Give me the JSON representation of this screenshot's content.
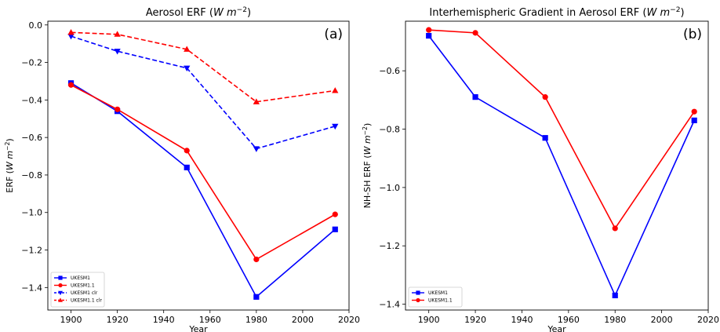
{
  "chart_data": [
    {
      "type": "line",
      "title": "Aerosol ERF (W m^-2)",
      "panel_label": "(a)",
      "xlabel": "Year",
      "ylabel": "ERF (W m^-2)",
      "xlim": [
        1890,
        2020
      ],
      "ylim": [
        -1.52,
        0.02
      ],
      "xticks": [
        1900,
        1920,
        1940,
        1960,
        1980,
        2000,
        2020
      ],
      "yticks": [
        0.0,
        -0.2,
        -0.4,
        -0.6,
        -0.8,
        -1.0,
        -1.2,
        -1.4
      ],
      "ytick_labels": [
        "0.0",
        "−0.2",
        "−0.4",
        "−0.6",
        "−0.8",
        "−1.0",
        "−1.2",
        "−1.4"
      ],
      "grid": false,
      "legend_position": "lower-left",
      "x": [
        1900,
        1920,
        1950,
        1980,
        2014
      ],
      "series": [
        {
          "name": "UKESM1",
          "values": [
            -0.31,
            -0.46,
            -0.76,
            -1.45,
            -1.09
          ],
          "color": "#0000ff",
          "marker": "square",
          "linestyle": "solid"
        },
        {
          "name": "UKESM1.1",
          "values": [
            -0.32,
            -0.45,
            -0.67,
            -1.25,
            -1.01
          ],
          "color": "#ff0000",
          "marker": "circle",
          "linestyle": "solid"
        },
        {
          "name": "UKESM1 clr",
          "values": [
            -0.06,
            -0.14,
            -0.23,
            -0.66,
            -0.54
          ],
          "color": "#0000ff",
          "marker": "triangle-down",
          "linestyle": "dashed"
        },
        {
          "name": "UKESM1.1 clr",
          "values": [
            -0.04,
            -0.05,
            -0.13,
            -0.41,
            -0.35
          ],
          "color": "#ff0000",
          "marker": "triangle-up",
          "linestyle": "dashed"
        }
      ]
    },
    {
      "type": "line",
      "title": "Interhemispheric Gradient in Aerosol ERF (W m^-2)",
      "panel_label": "(b)",
      "xlabel": "Year",
      "ylabel": "NH-SH ERF (W m^-2)",
      "xlim": [
        1890,
        2020
      ],
      "ylim": [
        -1.42,
        -0.43
      ],
      "xticks": [
        1900,
        1920,
        1940,
        1960,
        1980,
        2000,
        2020
      ],
      "yticks": [
        -0.6,
        -0.8,
        -1.0,
        -1.2,
        -1.4
      ],
      "ytick_labels": [
        "−0.6",
        "−0.8",
        "−1.0",
        "−1.2",
        "−1.4"
      ],
      "grid": false,
      "legend_position": "lower-left",
      "x": [
        1900,
        1920,
        1950,
        1980,
        2014
      ],
      "series": [
        {
          "name": "UKESM1",
          "values": [
            -0.48,
            -0.69,
            -0.83,
            -1.37,
            -0.77
          ],
          "color": "#0000ff",
          "marker": "square",
          "linestyle": "solid"
        },
        {
          "name": "UKESM1.1",
          "values": [
            -0.46,
            -0.47,
            -0.69,
            -1.14,
            -0.74
          ],
          "color": "#ff0000",
          "marker": "circle",
          "linestyle": "solid"
        }
      ]
    }
  ]
}
